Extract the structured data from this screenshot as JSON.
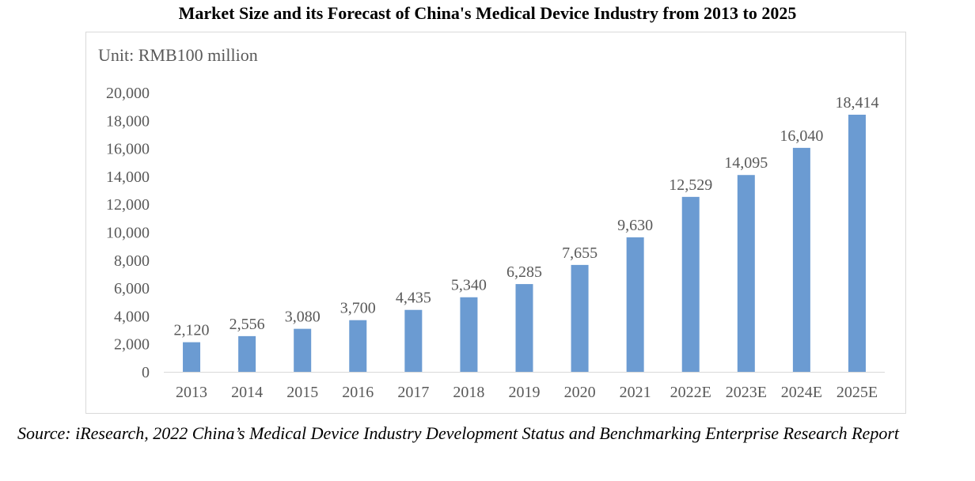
{
  "title": "Market Size and its Forecast of China's Medical Device Industry from 2013 to 2025",
  "unit_label": "Unit: RMB100 million",
  "source": "Source: iResearch, 2022 China’s Medical Device Industry Development Status and Benchmarking Enterprise Research Report",
  "colors": {
    "bar": "#6b9bd2",
    "axis_text": "#595959",
    "axis_line": "#d9d9d9"
  },
  "chart_data": {
    "type": "bar",
    "title": "Market Size and its Forecast of China's Medical Device Industry from 2013 to 2025",
    "ylabel": "Unit: RMB100 million",
    "xlabel": "",
    "categories": [
      "2013",
      "2014",
      "2015",
      "2016",
      "2017",
      "2018",
      "2019",
      "2020",
      "2021",
      "2022E",
      "2023E",
      "2024E",
      "2025E"
    ],
    "values": [
      2120,
      2556,
      3080,
      3700,
      4435,
      5340,
      6285,
      7655,
      9630,
      12529,
      14095,
      16040,
      18414
    ],
    "data_labels": [
      "2,120",
      "2,556",
      "3,080",
      "3,700",
      "4,435",
      "5,340",
      "6,285",
      "7,655",
      "9,630",
      "12,529",
      "14,095",
      "16,040",
      "18,414"
    ],
    "yticks": [
      "0",
      "2,000",
      "4,000",
      "6,000",
      "8,000",
      "10,000",
      "12,000",
      "14,000",
      "16,000",
      "18,000",
      "20,000"
    ],
    "ylim": [
      0,
      20000
    ],
    "grid": false,
    "legend": "none"
  }
}
